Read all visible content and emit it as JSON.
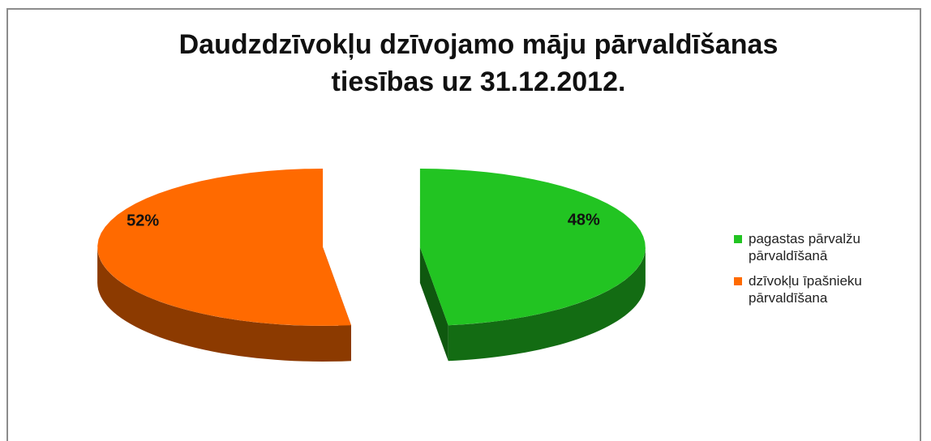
{
  "chart_data": {
    "type": "pie",
    "title": "Daudzdzīvokļu dzīvojamo māju pārvaldīšanas tiesības  uz 31.12.2012.",
    "categories": [
      "pagastas pārvalžu pārvaldīšanā",
      "dzīvokļu īpašnieku pārvaldīšana"
    ],
    "values": [
      48,
      52
    ],
    "value_labels": [
      "48%",
      "52%"
    ],
    "colors": [
      "#22c422",
      "#ff6a00"
    ],
    "legend": "right"
  }
}
